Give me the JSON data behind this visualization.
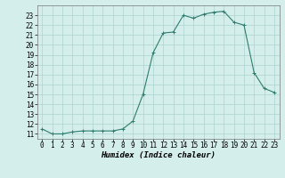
{
  "x": [
    0,
    1,
    2,
    3,
    4,
    5,
    6,
    7,
    8,
    9,
    10,
    11,
    12,
    13,
    14,
    15,
    16,
    17,
    18,
    19,
    20,
    21,
    22,
    23
  ],
  "y": [
    11.5,
    11.0,
    11.0,
    11.2,
    11.3,
    11.3,
    11.3,
    11.3,
    11.5,
    12.3,
    15.0,
    19.2,
    21.2,
    21.3,
    23.0,
    22.7,
    23.1,
    23.3,
    23.4,
    22.3,
    22.0,
    17.2,
    15.6,
    15.2
  ],
  "xlabel": "Humidex (Indice chaleur)",
  "xlim": [
    -0.5,
    23.5
  ],
  "ylim": [
    10.5,
    24.0
  ],
  "yticks": [
    11,
    12,
    13,
    14,
    15,
    16,
    17,
    18,
    19,
    20,
    21,
    22,
    23
  ],
  "xticks": [
    0,
    1,
    2,
    3,
    4,
    5,
    6,
    7,
    8,
    9,
    10,
    11,
    12,
    13,
    14,
    15,
    16,
    17,
    18,
    19,
    20,
    21,
    22,
    23
  ],
  "line_color": "#2e7d6e",
  "marker": "+",
  "background_color": "#d4eeec",
  "grid_color": "#aed4d0",
  "axis_label_fontsize": 6.5,
  "tick_fontsize": 5.5
}
